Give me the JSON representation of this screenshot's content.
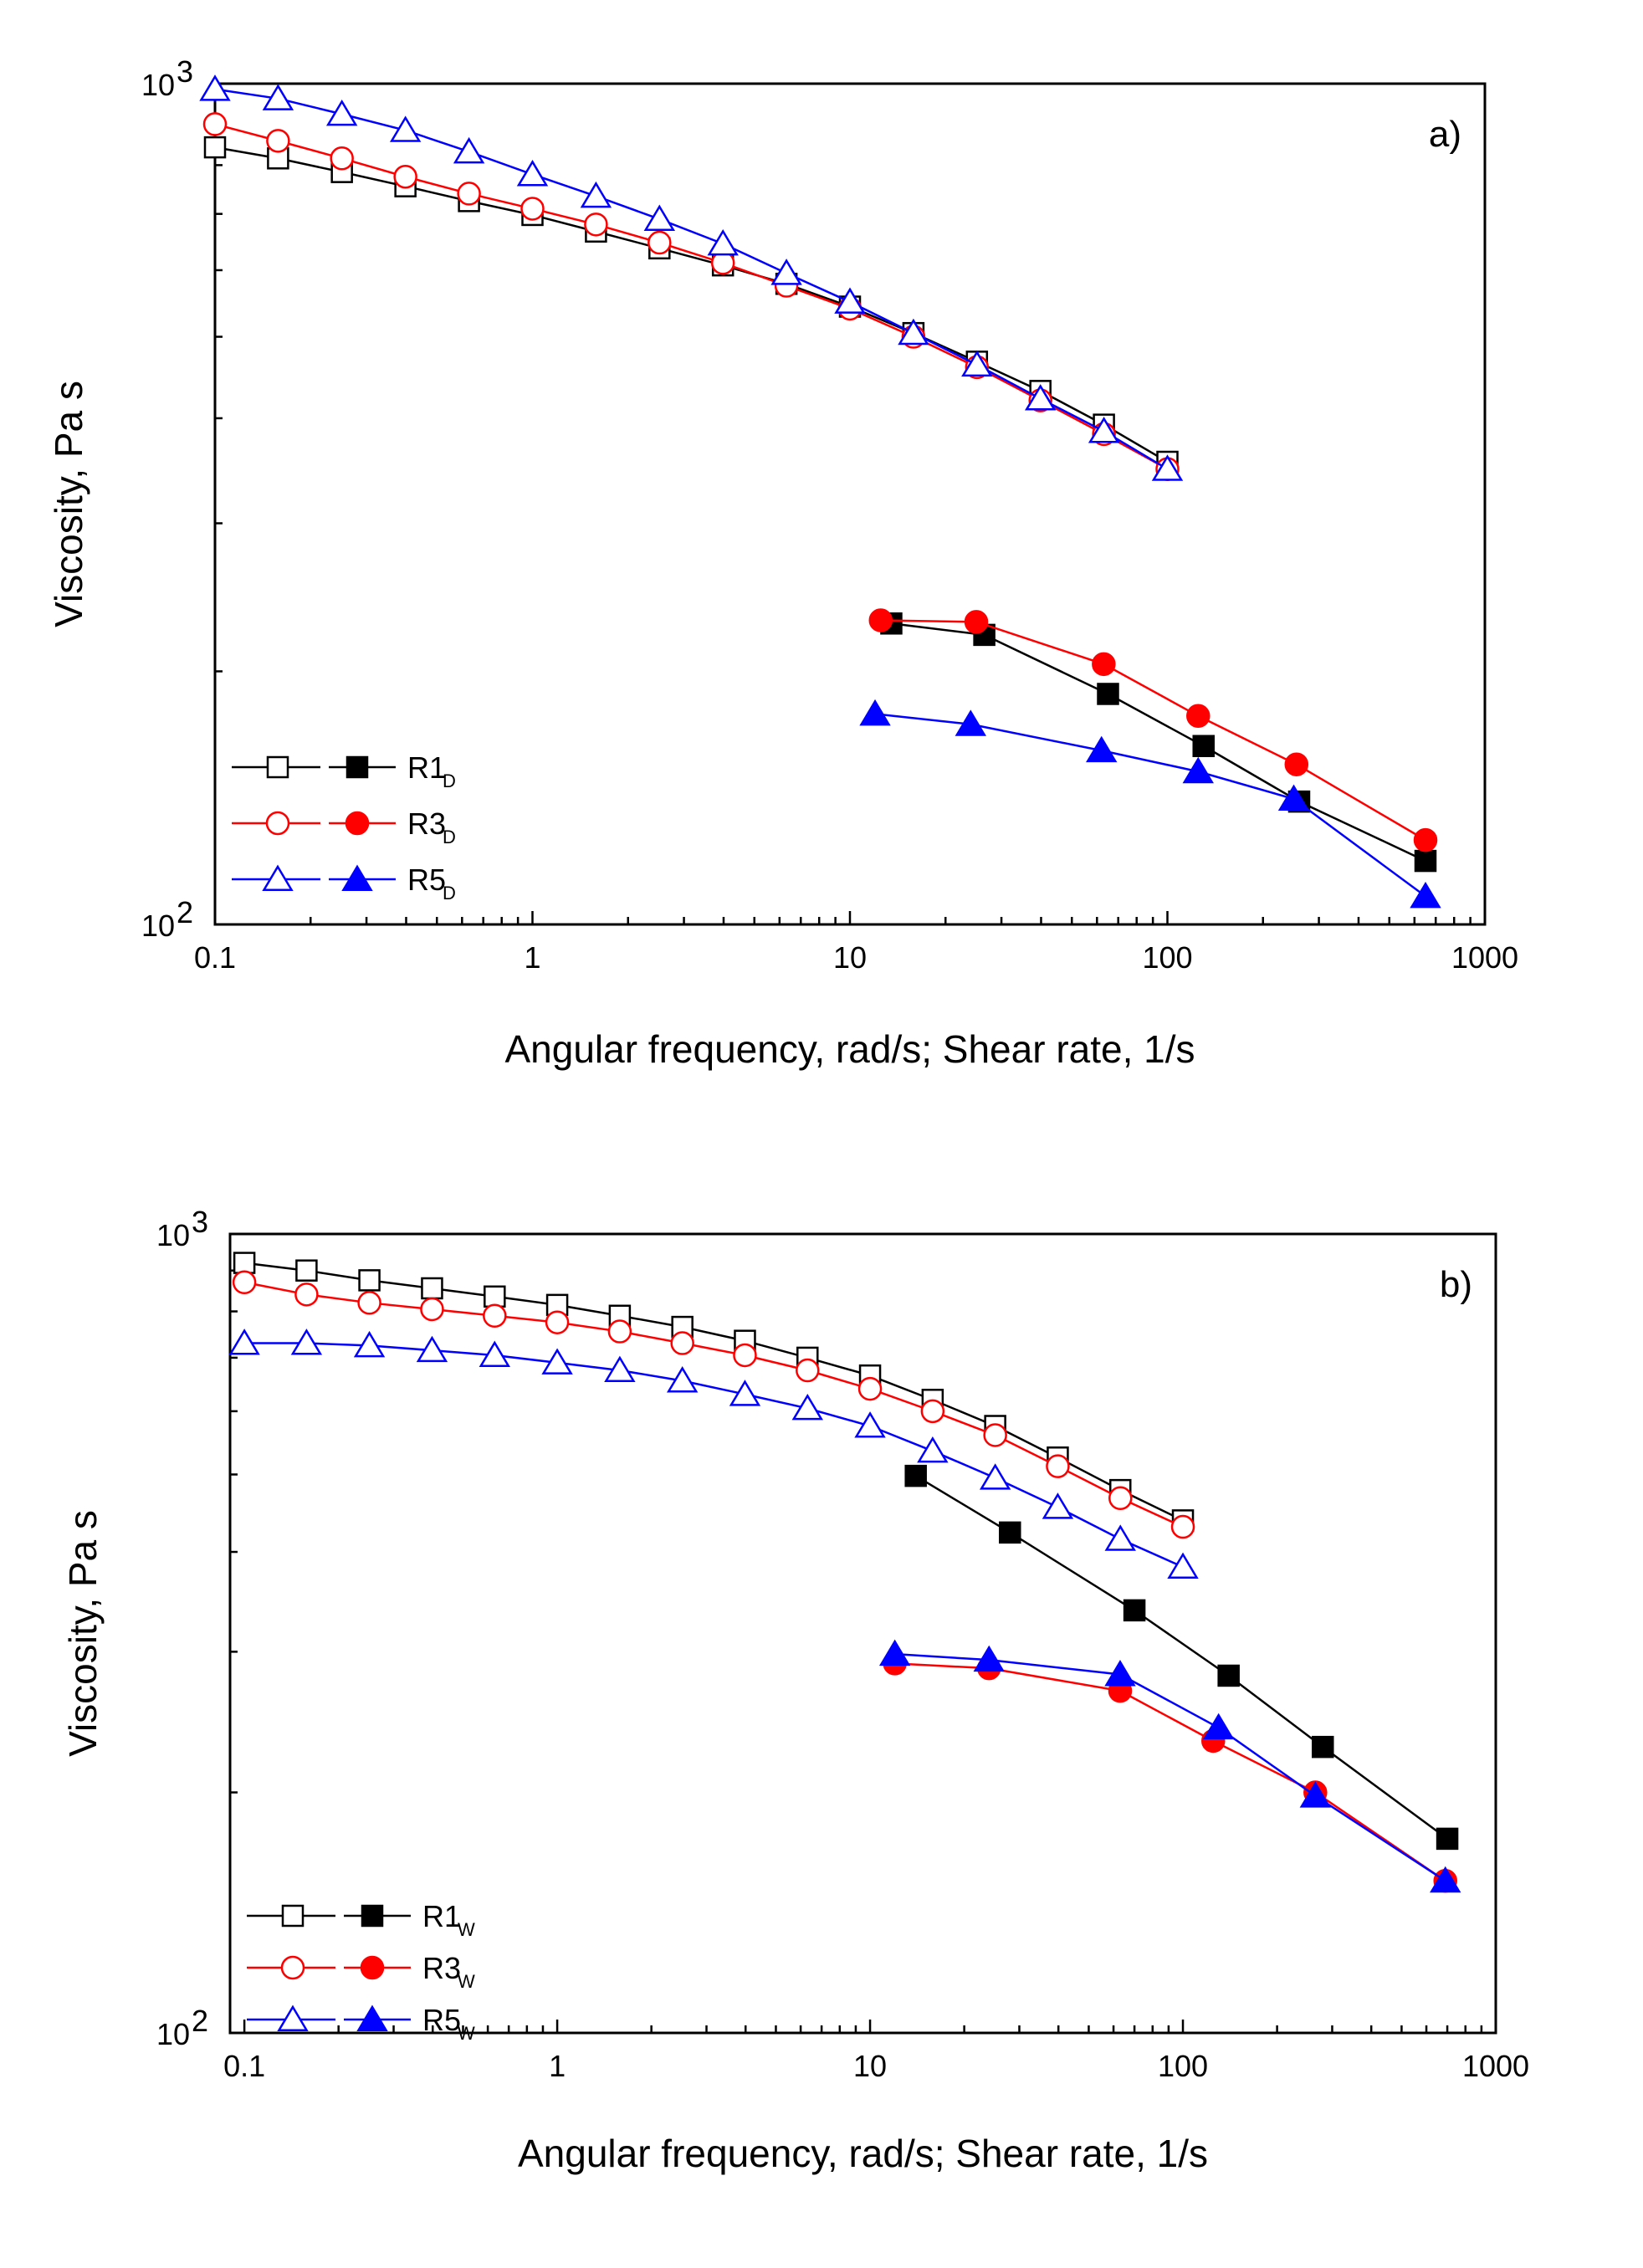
{
  "chart_data": [
    {
      "type": "line",
      "panel_label": "a)",
      "xlabel": "Angular frequency, rad/s; Shear rate, 1/s",
      "ylabel": "Viscosity, Pa s",
      "xscale": "log",
      "yscale": "log",
      "xlim": [
        0.1,
        1000
      ],
      "ylim": [
        100,
        1000
      ],
      "x_tick_labels": [
        "0.1",
        "1",
        "10",
        "100",
        "1000"
      ],
      "y_tick_labels": [
        {
          "base": "10",
          "exp": "2"
        },
        {
          "base": "10",
          "exp": "3"
        }
      ],
      "legend": {
        "position": "bottom-left",
        "entries": [
          {
            "name": "R1",
            "subscript": "D",
            "color": "#000000",
            "marker": "square"
          },
          {
            "name": "R3",
            "subscript": "D",
            "color": "#ff0000",
            "marker": "circle"
          },
          {
            "name": "R5",
            "subscript": "D",
            "color": "#0000ff",
            "marker": "triangle"
          }
        ]
      },
      "series": [
        {
          "name": "R1D oscillatory",
          "legend_index": 0,
          "fill": "open",
          "color": "#000000",
          "marker": "square",
          "x": [
            0.1,
            0.158,
            0.251,
            0.398,
            0.631,
            1,
            1.585,
            2.512,
            3.981,
            6.31,
            10,
            15.85,
            25.12,
            39.81,
            63.1,
            100
          ],
          "y": [
            840,
            815,
            785,
            755,
            725,
            698,
            667,
            637,
            608,
            578,
            543,
            505,
            467,
            431,
            393,
            355
          ]
        },
        {
          "name": "R3D oscillatory",
          "legend_index": 1,
          "fill": "open",
          "color": "#ff0000",
          "marker": "circle",
          "x": [
            0.1,
            0.158,
            0.251,
            0.398,
            0.631,
            1,
            1.585,
            2.512,
            3.981,
            6.31,
            10,
            15.85,
            25.12,
            39.81,
            63.1,
            100
          ],
          "y": [
            895,
            855,
            815,
            775,
            740,
            710,
            680,
            647,
            612,
            575,
            540,
            500,
            460,
            420,
            383,
            348
          ]
        },
        {
          "name": "R5D oscillatory",
          "legend_index": 2,
          "fill": "open",
          "color": "#0000ff",
          "marker": "triangle",
          "x": [
            0.1,
            0.158,
            0.251,
            0.398,
            0.631,
            1,
            1.585,
            2.512,
            3.981,
            6.31,
            10,
            15.85,
            25.12,
            39.81,
            63.1,
            100
          ],
          "y": [
            985,
            960,
            920,
            880,
            830,
            780,
            735,
            690,
            645,
            595,
            550,
            505,
            463,
            422,
            386,
            348
          ]
        },
        {
          "name": "R1D steady shear",
          "legend_index": 0,
          "fill": "filled",
          "color": "#000000",
          "marker": "square",
          "x": [
            13.5,
            26.5,
            65,
            130,
            260,
            650
          ],
          "y": [
            228,
            221,
            188,
            163,
            140,
            119
          ]
        },
        {
          "name": "R3D steady shear",
          "legend_index": 1,
          "fill": "filled",
          "color": "#ff0000",
          "marker": "circle",
          "x": [
            12.5,
            25,
            63,
            125,
            255,
            650
          ],
          "y": [
            230,
            229,
            204,
            177,
            155,
            126
          ]
        },
        {
          "name": "R5D steady shear",
          "legend_index": 2,
          "fill": "filled",
          "color": "#0000ff",
          "marker": "triangle",
          "x": [
            12,
            24,
            62,
            125,
            250,
            650
          ],
          "y": [
            178,
            173,
            161,
            152,
            141,
            108
          ]
        }
      ]
    },
    {
      "type": "line",
      "panel_label": "b)",
      "xlabel": "Angular frequency, rad/s; Shear rate, 1/s",
      "ylabel": "Viscosity, Pa s",
      "xscale": "log",
      "yscale": "log",
      "xlim": [
        0.09,
        1000
      ],
      "ylim": [
        100,
        1000
      ],
      "x_tick_labels": [
        "0.1",
        "1",
        "10",
        "100",
        "1000"
      ],
      "y_tick_labels": [
        {
          "base": "10",
          "exp": "2"
        },
        {
          "base": "10",
          "exp": "3"
        }
      ],
      "legend": {
        "position": "bottom-left",
        "entries": [
          {
            "name": "R1",
            "subscript": "W",
            "color": "#000000",
            "marker": "square"
          },
          {
            "name": "R3",
            "subscript": "W",
            "color": "#ff0000",
            "marker": "circle"
          },
          {
            "name": "R5",
            "subscript": "W",
            "color": "#0000ff",
            "marker": "triangle"
          }
        ]
      },
      "series": [
        {
          "name": "R1W oscillatory",
          "legend_index": 0,
          "fill": "open",
          "color": "#000000",
          "marker": "square",
          "x": [
            0.1,
            0.158,
            0.251,
            0.398,
            0.631,
            1,
            1.585,
            2.512,
            3.981,
            6.31,
            10,
            15.85,
            25.12,
            39.81,
            63.1,
            100
          ],
          "y": [
            920,
            900,
            875,
            855,
            835,
            815,
            790,
            765,
            735,
            700,
            665,
            620,
            575,
            525,
            478,
            438
          ]
        },
        {
          "name": "R3W oscillatory",
          "legend_index": 1,
          "fill": "open",
          "color": "#ff0000",
          "marker": "circle",
          "x": [
            0.1,
            0.158,
            0.251,
            0.398,
            0.631,
            1,
            1.585,
            2.512,
            3.981,
            6.31,
            10,
            15.85,
            25.12,
            39.81,
            63.1,
            100
          ],
          "y": [
            870,
            840,
            820,
            805,
            790,
            775,
            755,
            730,
            705,
            675,
            640,
            600,
            560,
            512,
            467,
            430
          ]
        },
        {
          "name": "R5W oscillatory",
          "legend_index": 2,
          "fill": "open",
          "color": "#0000ff",
          "marker": "triangle",
          "x": [
            0.1,
            0.158,
            0.251,
            0.398,
            0.631,
            1,
            1.585,
            2.512,
            3.981,
            6.31,
            10,
            15.85,
            25.12,
            39.81,
            63.1,
            100
          ],
          "y": [
            730,
            730,
            725,
            715,
            705,
            690,
            675,
            655,
            630,
            605,
            575,
            535,
            495,
            455,
            415,
            383
          ]
        },
        {
          "name": "R1W steady shear",
          "legend_index": 0,
          "fill": "filled",
          "color": "#000000",
          "marker": "square",
          "x": [
            14,
            28,
            70,
            140,
            280,
            700
          ],
          "y": [
            498,
            423,
            338,
            280,
            228,
            175
          ]
        },
        {
          "name": "R3W steady shear",
          "legend_index": 1,
          "fill": "filled",
          "color": "#ff0000",
          "marker": "circle",
          "x": [
            12,
            24,
            63,
            125,
            265,
            690
          ],
          "y": [
            290,
            286,
            268,
            232,
            200,
            155
          ]
        },
        {
          "name": "R5W steady shear",
          "legend_index": 2,
          "fill": "filled",
          "color": "#0000ff",
          "marker": "triangle",
          "x": [
            12,
            24,
            63,
            130,
            265,
            690
          ],
          "y": [
            298,
            293,
            281,
            241,
            198,
            155
          ]
        }
      ]
    }
  ]
}
